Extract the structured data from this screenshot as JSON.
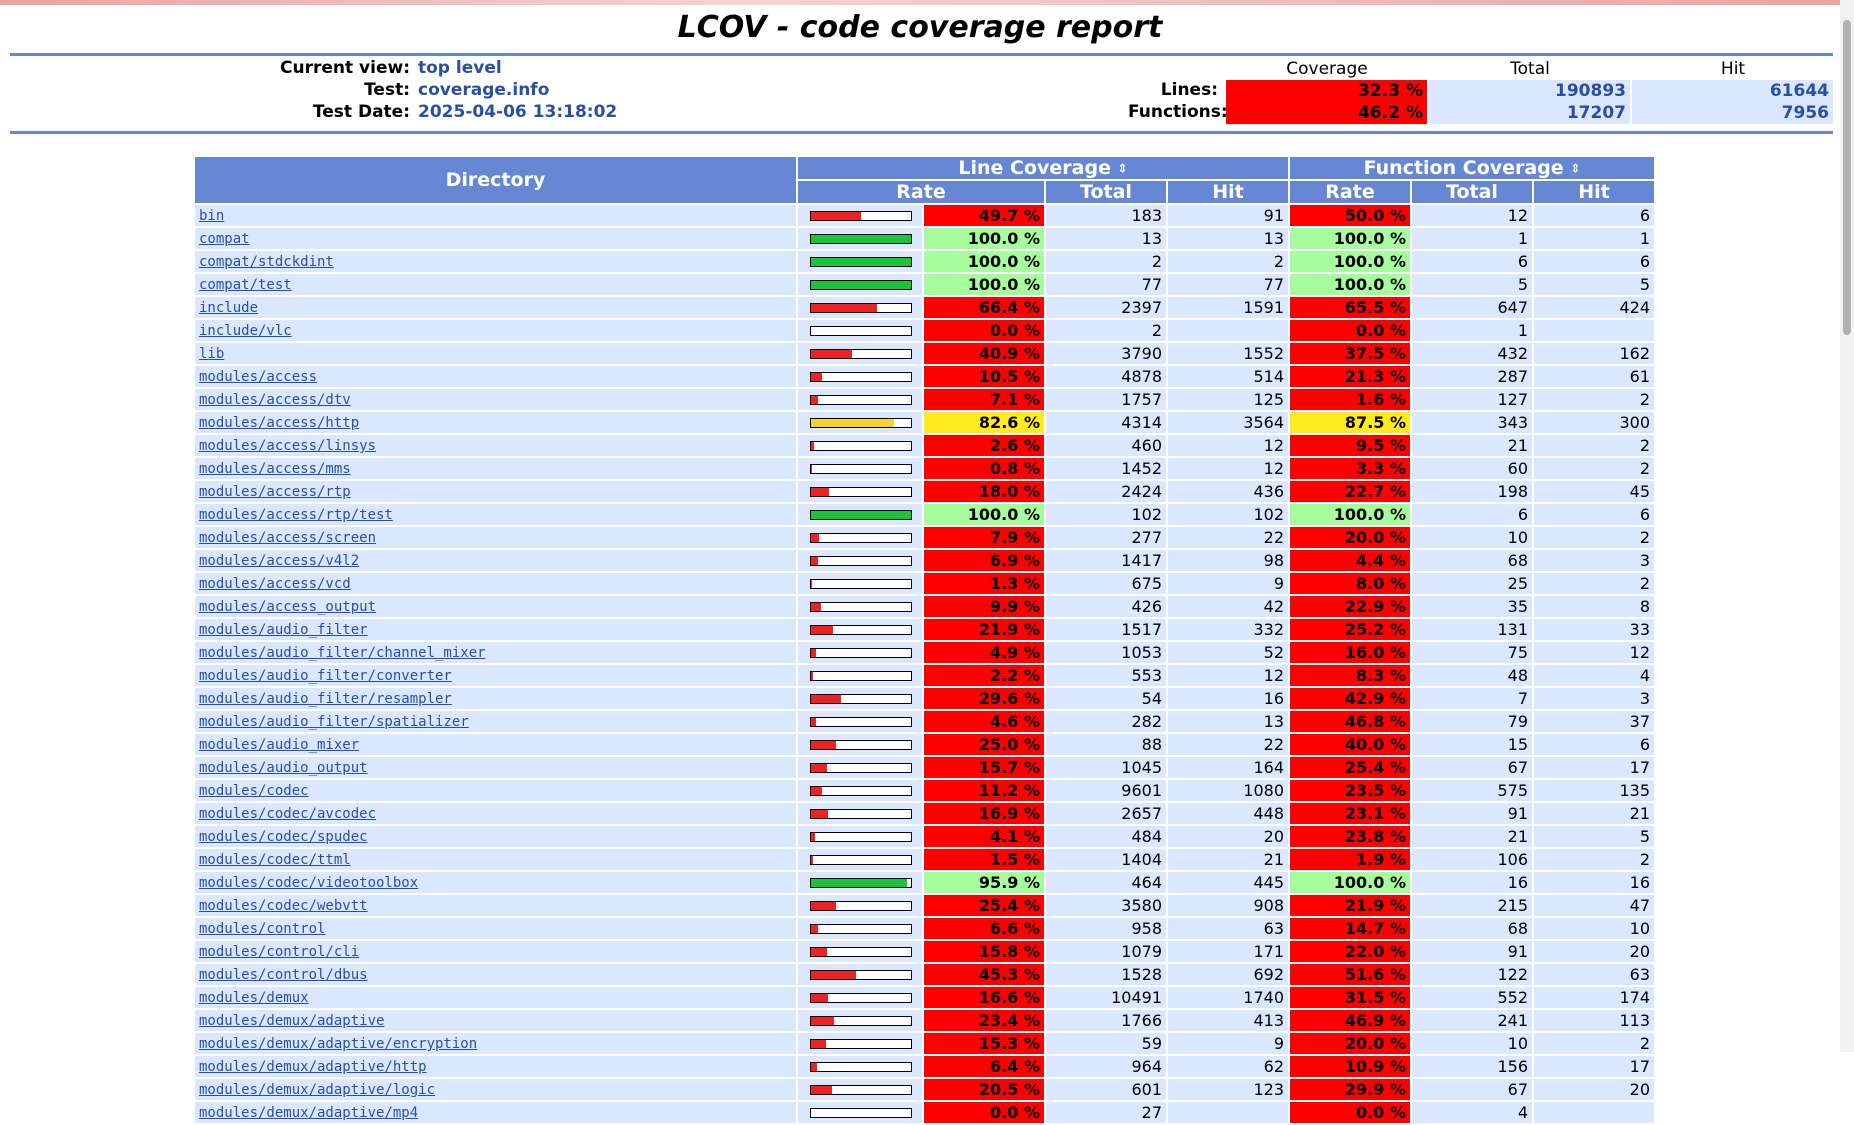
{
  "title": "LCOV - code coverage report",
  "header": {
    "current_view_label": "Current view:",
    "current_view_value": "top level",
    "test_label": "Test:",
    "test_value": "coverage.info",
    "test_date_label": "Test Date:",
    "test_date_value": "2025-04-06 13:18:02"
  },
  "summary": {
    "col_coverage": "Coverage",
    "col_total": "Total",
    "col_hit": "Hit",
    "lines_label": "Lines:",
    "lines_coverage": "32.3 %",
    "lines_total": "190893",
    "lines_hit": "61644",
    "functions_label": "Functions:",
    "functions_coverage": "46.2 %",
    "functions_total": "17207",
    "functions_hit": "7956"
  },
  "table": {
    "directory_header": "Directory",
    "line_coverage_header": "Line Coverage",
    "function_coverage_header": "Function Coverage",
    "rate_header": "Rate",
    "total_header": "Total",
    "hit_header": "Hit",
    "sort_icon": "⇕",
    "rows": [
      {
        "dir": "bin",
        "line_rate": "49.7 %",
        "line_pct": 49.7,
        "line_total": "183",
        "line_hit": "91",
        "func_rate": "50.0 %",
        "func_total": "12",
        "func_hit": "6"
      },
      {
        "dir": "compat",
        "line_rate": "100.0 %",
        "line_pct": 100.0,
        "line_total": "13",
        "line_hit": "13",
        "func_rate": "100.0 %",
        "func_total": "1",
        "func_hit": "1"
      },
      {
        "dir": "compat/stdckdint",
        "line_rate": "100.0 %",
        "line_pct": 100.0,
        "line_total": "2",
        "line_hit": "2",
        "func_rate": "100.0 %",
        "func_total": "6",
        "func_hit": "6"
      },
      {
        "dir": "compat/test",
        "line_rate": "100.0 %",
        "line_pct": 100.0,
        "line_total": "77",
        "line_hit": "77",
        "func_rate": "100.0 %",
        "func_total": "5",
        "func_hit": "5"
      },
      {
        "dir": "include",
        "line_rate": "66.4 %",
        "line_pct": 66.4,
        "line_total": "2397",
        "line_hit": "1591",
        "func_rate": "65.5 %",
        "func_total": "647",
        "func_hit": "424"
      },
      {
        "dir": "include/vlc",
        "line_rate": "0.0 %",
        "line_pct": 0.0,
        "line_total": "2",
        "line_hit": "",
        "func_rate": "0.0 %",
        "func_total": "1",
        "func_hit": ""
      },
      {
        "dir": "lib",
        "line_rate": "40.9 %",
        "line_pct": 40.9,
        "line_total": "3790",
        "line_hit": "1552",
        "func_rate": "37.5 %",
        "func_total": "432",
        "func_hit": "162"
      },
      {
        "dir": "modules/access",
        "line_rate": "10.5 %",
        "line_pct": 10.5,
        "line_total": "4878",
        "line_hit": "514",
        "func_rate": "21.3 %",
        "func_total": "287",
        "func_hit": "61"
      },
      {
        "dir": "modules/access/dtv",
        "line_rate": "7.1 %",
        "line_pct": 7.1,
        "line_total": "1757",
        "line_hit": "125",
        "func_rate": "1.6 %",
        "func_total": "127",
        "func_hit": "2"
      },
      {
        "dir": "modules/access/http",
        "line_rate": "82.6 %",
        "line_pct": 82.6,
        "line_total": "4314",
        "line_hit": "3564",
        "func_rate": "87.5 %",
        "func_total": "343",
        "func_hit": "300"
      },
      {
        "dir": "modules/access/linsys",
        "line_rate": "2.6 %",
        "line_pct": 2.6,
        "line_total": "460",
        "line_hit": "12",
        "func_rate": "9.5 %",
        "func_total": "21",
        "func_hit": "2"
      },
      {
        "dir": "modules/access/mms",
        "line_rate": "0.8 %",
        "line_pct": 0.8,
        "line_total": "1452",
        "line_hit": "12",
        "func_rate": "3.3 %",
        "func_total": "60",
        "func_hit": "2"
      },
      {
        "dir": "modules/access/rtp",
        "line_rate": "18.0 %",
        "line_pct": 18.0,
        "line_total": "2424",
        "line_hit": "436",
        "func_rate": "22.7 %",
        "func_total": "198",
        "func_hit": "45"
      },
      {
        "dir": "modules/access/rtp/test",
        "line_rate": "100.0 %",
        "line_pct": 100.0,
        "line_total": "102",
        "line_hit": "102",
        "func_rate": "100.0 %",
        "func_total": "6",
        "func_hit": "6"
      },
      {
        "dir": "modules/access/screen",
        "line_rate": "7.9 %",
        "line_pct": 7.9,
        "line_total": "277",
        "line_hit": "22",
        "func_rate": "20.0 %",
        "func_total": "10",
        "func_hit": "2"
      },
      {
        "dir": "modules/access/v4l2",
        "line_rate": "6.9 %",
        "line_pct": 6.9,
        "line_total": "1417",
        "line_hit": "98",
        "func_rate": "4.4 %",
        "func_total": "68",
        "func_hit": "3"
      },
      {
        "dir": "modules/access/vcd",
        "line_rate": "1.3 %",
        "line_pct": 1.3,
        "line_total": "675",
        "line_hit": "9",
        "func_rate": "8.0 %",
        "func_total": "25",
        "func_hit": "2"
      },
      {
        "dir": "modules/access_output",
        "line_rate": "9.9 %",
        "line_pct": 9.9,
        "line_total": "426",
        "line_hit": "42",
        "func_rate": "22.9 %",
        "func_total": "35",
        "func_hit": "8"
      },
      {
        "dir": "modules/audio_filter",
        "line_rate": "21.9 %",
        "line_pct": 21.9,
        "line_total": "1517",
        "line_hit": "332",
        "func_rate": "25.2 %",
        "func_total": "131",
        "func_hit": "33"
      },
      {
        "dir": "modules/audio_filter/channel_mixer",
        "line_rate": "4.9 %",
        "line_pct": 4.9,
        "line_total": "1053",
        "line_hit": "52",
        "func_rate": "16.0 %",
        "func_total": "75",
        "func_hit": "12"
      },
      {
        "dir": "modules/audio_filter/converter",
        "line_rate": "2.2 %",
        "line_pct": 2.2,
        "line_total": "553",
        "line_hit": "12",
        "func_rate": "8.3 %",
        "func_total": "48",
        "func_hit": "4"
      },
      {
        "dir": "modules/audio_filter/resampler",
        "line_rate": "29.6 %",
        "line_pct": 29.6,
        "line_total": "54",
        "line_hit": "16",
        "func_rate": "42.9 %",
        "func_total": "7",
        "func_hit": "3"
      },
      {
        "dir": "modules/audio_filter/spatializer",
        "line_rate": "4.6 %",
        "line_pct": 4.6,
        "line_total": "282",
        "line_hit": "13",
        "func_rate": "46.8 %",
        "func_total": "79",
        "func_hit": "37"
      },
      {
        "dir": "modules/audio_mixer",
        "line_rate": "25.0 %",
        "line_pct": 25.0,
        "line_total": "88",
        "line_hit": "22",
        "func_rate": "40.0 %",
        "func_total": "15",
        "func_hit": "6"
      },
      {
        "dir": "modules/audio_output",
        "line_rate": "15.7 %",
        "line_pct": 15.7,
        "line_total": "1045",
        "line_hit": "164",
        "func_rate": "25.4 %",
        "func_total": "67",
        "func_hit": "17"
      },
      {
        "dir": "modules/codec",
        "line_rate": "11.2 %",
        "line_pct": 11.2,
        "line_total": "9601",
        "line_hit": "1080",
        "func_rate": "23.5 %",
        "func_total": "575",
        "func_hit": "135"
      },
      {
        "dir": "modules/codec/avcodec",
        "line_rate": "16.9 %",
        "line_pct": 16.9,
        "line_total": "2657",
        "line_hit": "448",
        "func_rate": "23.1 %",
        "func_total": "91",
        "func_hit": "21"
      },
      {
        "dir": "modules/codec/spudec",
        "line_rate": "4.1 %",
        "line_pct": 4.1,
        "line_total": "484",
        "line_hit": "20",
        "func_rate": "23.8 %",
        "func_total": "21",
        "func_hit": "5"
      },
      {
        "dir": "modules/codec/ttml",
        "line_rate": "1.5 %",
        "line_pct": 1.5,
        "line_total": "1404",
        "line_hit": "21",
        "func_rate": "1.9 %",
        "func_total": "106",
        "func_hit": "2"
      },
      {
        "dir": "modules/codec/videotoolbox",
        "line_rate": "95.9 %",
        "line_pct": 95.9,
        "line_total": "464",
        "line_hit": "445",
        "func_rate": "100.0 %",
        "func_total": "16",
        "func_hit": "16"
      },
      {
        "dir": "modules/codec/webvtt",
        "line_rate": "25.4 %",
        "line_pct": 25.4,
        "line_total": "3580",
        "line_hit": "908",
        "func_rate": "21.9 %",
        "func_total": "215",
        "func_hit": "47"
      },
      {
        "dir": "modules/control",
        "line_rate": "6.6 %",
        "line_pct": 6.6,
        "line_total": "958",
        "line_hit": "63",
        "func_rate": "14.7 %",
        "func_total": "68",
        "func_hit": "10"
      },
      {
        "dir": "modules/control/cli",
        "line_rate": "15.8 %",
        "line_pct": 15.8,
        "line_total": "1079",
        "line_hit": "171",
        "func_rate": "22.0 %",
        "func_total": "91",
        "func_hit": "20"
      },
      {
        "dir": "modules/control/dbus",
        "line_rate": "45.3 %",
        "line_pct": 45.3,
        "line_total": "1528",
        "line_hit": "692",
        "func_rate": "51.6 %",
        "func_total": "122",
        "func_hit": "63"
      },
      {
        "dir": "modules/demux",
        "line_rate": "16.6 %",
        "line_pct": 16.6,
        "line_total": "10491",
        "line_hit": "1740",
        "func_rate": "31.5 %",
        "func_total": "552",
        "func_hit": "174"
      },
      {
        "dir": "modules/demux/adaptive",
        "line_rate": "23.4 %",
        "line_pct": 23.4,
        "line_total": "1766",
        "line_hit": "413",
        "func_rate": "46.9 %",
        "func_total": "241",
        "func_hit": "113"
      },
      {
        "dir": "modules/demux/adaptive/encryption",
        "line_rate": "15.3 %",
        "line_pct": 15.3,
        "line_total": "59",
        "line_hit": "9",
        "func_rate": "20.0 %",
        "func_total": "10",
        "func_hit": "2"
      },
      {
        "dir": "modules/demux/adaptive/http",
        "line_rate": "6.4 %",
        "line_pct": 6.4,
        "line_total": "964",
        "line_hit": "62",
        "func_rate": "10.9 %",
        "func_total": "156",
        "func_hit": "17"
      },
      {
        "dir": "modules/demux/adaptive/logic",
        "line_rate": "20.5 %",
        "line_pct": 20.5,
        "line_total": "601",
        "line_hit": "123",
        "func_rate": "29.9 %",
        "func_total": "67",
        "func_hit": "20"
      },
      {
        "dir": "modules/demux/adaptive/mp4",
        "line_rate": "0.0 %",
        "line_pct": 0.0,
        "line_total": "27",
        "line_hit": "",
        "func_rate": "0.0 %",
        "func_total": "4",
        "func_hit": ""
      }
    ]
  },
  "colors": {
    "header_blue": "#6688d4",
    "cell_blue": "#dae7fe",
    "low": "#ff0000",
    "medium": "#ffea20",
    "high": "#a7fc9d",
    "bar_low": "#ee2222",
    "bar_medium": "#f7d32c",
    "bar_high": "#1cc43c"
  }
}
